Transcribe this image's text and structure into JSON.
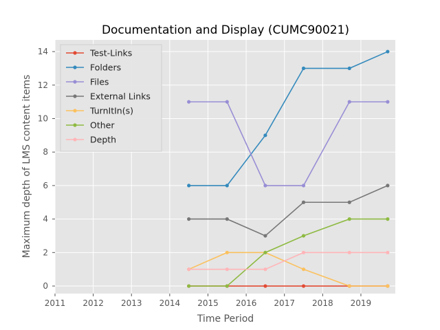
{
  "chart_data": {
    "type": "line",
    "title": "Documentation and Display (CUMC90021)",
    "xlabel": "Time Period",
    "ylabel": "Maximum depth of LMS content items",
    "xlim": [
      2011,
      2019.9
    ],
    "ylim": [
      -0.45,
      14.7
    ],
    "xticks": [
      2011,
      2012,
      2013,
      2014,
      2015,
      2016,
      2017,
      2018,
      2019
    ],
    "yticks": [
      0,
      2,
      4,
      6,
      8,
      10,
      12,
      14
    ],
    "grid": true,
    "legend_position": "upper-left",
    "x": [
      2014.5,
      2015.5,
      2016.5,
      2017.5,
      2018.7,
      2019.7
    ],
    "series": [
      {
        "name": "Test-Links",
        "color": "#e24a33",
        "values": [
          0,
          0,
          0,
          0,
          0,
          0
        ]
      },
      {
        "name": "Folders",
        "color": "#348abd",
        "values": [
          6,
          6,
          9,
          13,
          13,
          14
        ]
      },
      {
        "name": "Files",
        "color": "#988ed5",
        "values": [
          11,
          11,
          6,
          6,
          11,
          11
        ]
      },
      {
        "name": "External Links",
        "color": "#777777",
        "values": [
          4,
          4,
          3,
          5,
          5,
          6
        ]
      },
      {
        "name": "TurnItIn(s)",
        "color": "#fbc15e",
        "values": [
          1,
          2,
          2,
          1,
          0,
          0
        ]
      },
      {
        "name": "Other",
        "color": "#8eba42",
        "values": [
          0,
          0,
          2,
          3,
          4,
          4
        ]
      },
      {
        "name": "Depth",
        "color": "#ffb5b8",
        "values": [
          1,
          1,
          1,
          2,
          2,
          2
        ]
      }
    ],
    "background": "#e5e5e5",
    "grid_color": "#ffffff"
  }
}
